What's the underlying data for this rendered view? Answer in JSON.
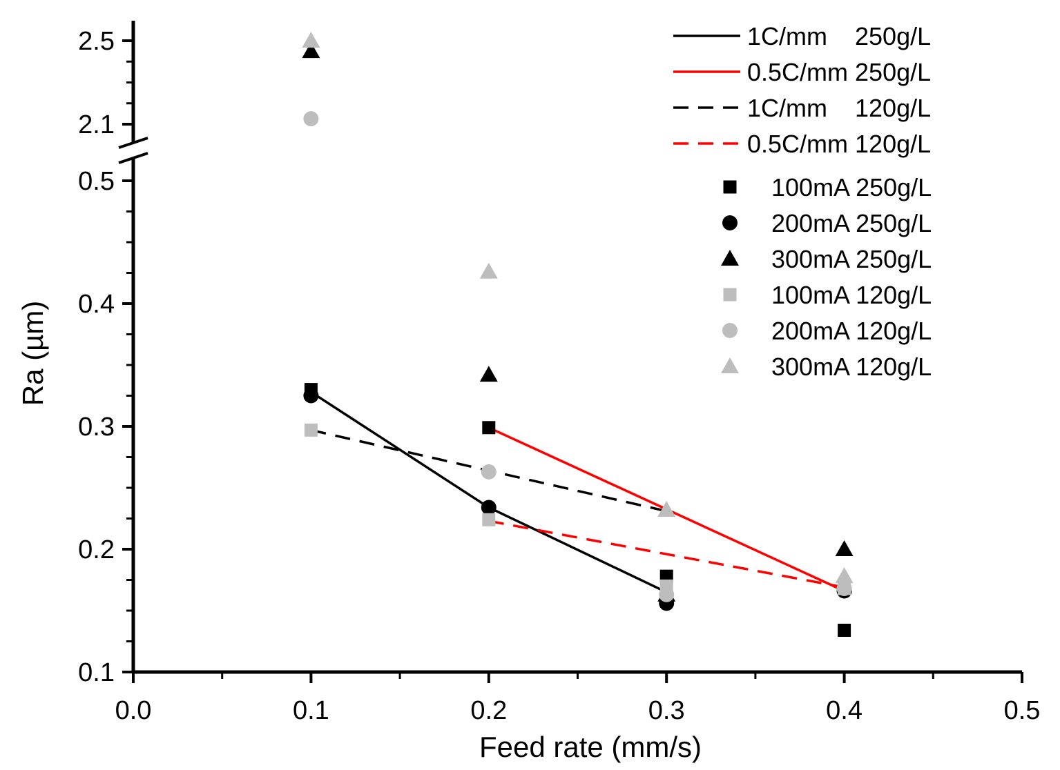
{
  "chart_data": {
    "type": "scatter",
    "xlabel": "Feed rate (mm/s)",
    "ylabel": "Ra (µm)",
    "xlim": [
      0.0,
      0.5
    ],
    "x_ticks": [
      "0.0",
      "0.1",
      "0.2",
      "0.3",
      "0.4",
      "0.5"
    ],
    "y_axis_broken": true,
    "ylim_lower": [
      0.1,
      0.52
    ],
    "ylim_upper": [
      2.05,
      2.55
    ],
    "y_ticks_lower": [
      "0.1",
      "0.2",
      "0.3",
      "0.4",
      "0.5"
    ],
    "y_ticks_upper": [
      "2.1",
      "2.5"
    ],
    "lines": [
      {
        "name": "1C/mm    250g/L",
        "color": "#000000",
        "dash": "solid",
        "x": [
          0.1,
          0.2,
          0.3
        ],
        "y": [
          0.328,
          0.234,
          0.165
        ]
      },
      {
        "name": "0.5C/mm 250g/L",
        "color": "#ff0000",
        "dash": "solid",
        "x": [
          0.2,
          0.4
        ],
        "y": [
          0.299,
          0.166
        ]
      },
      {
        "name": "1C/mm    120g/L",
        "color": "#000000",
        "dash": "dashed",
        "x": [
          0.1,
          0.2,
          0.3
        ],
        "y": [
          0.297,
          0.264,
          0.231
        ]
      },
      {
        "name": "0.5C/mm 120g/L",
        "color": "#ff0000",
        "dash": "dashed",
        "x": [
          0.2,
          0.4
        ],
        "y": [
          0.223,
          0.169
        ]
      }
    ],
    "series": [
      {
        "name": "100mA 250g/L",
        "marker": "square",
        "color": "#000000",
        "x": [
          0.1,
          0.2,
          0.3,
          0.4
        ],
        "y": [
          0.33,
          0.299,
          0.178,
          0.134
        ]
      },
      {
        "name": "200mA 250g/L",
        "marker": "circle",
        "color": "#000000",
        "x": [
          0.1,
          0.2,
          0.3,
          0.4
        ],
        "y": [
          0.325,
          0.234,
          0.156,
          0.166
        ]
      },
      {
        "name": "300mA 250g/L",
        "marker": "triangle",
        "color": "#000000",
        "x": [
          0.1,
          0.2,
          0.3,
          0.4
        ],
        "y": [
          2.45,
          0.342,
          0.163,
          0.2
        ]
      },
      {
        "name": "100mA 120g/L",
        "marker": "square",
        "color": "#bdbdbd",
        "x": [
          0.1,
          0.2,
          0.3,
          0.4
        ],
        "y": [
          0.297,
          0.224,
          0.17,
          0.168
        ]
      },
      {
        "name": "200mA 120g/L",
        "marker": "circle",
        "color": "#bdbdbd",
        "x": [
          0.1,
          0.2,
          0.3,
          0.4
        ],
        "y": [
          2.126,
          0.263,
          0.163,
          0.168
        ]
      },
      {
        "name": "300mA 120g/L",
        "marker": "triangle",
        "color": "#bdbdbd",
        "x": [
          0.1,
          0.2,
          0.3,
          0.4
        ],
        "y": [
          2.5,
          0.426,
          0.232,
          0.178
        ]
      }
    ],
    "legend_position": "top-right"
  }
}
